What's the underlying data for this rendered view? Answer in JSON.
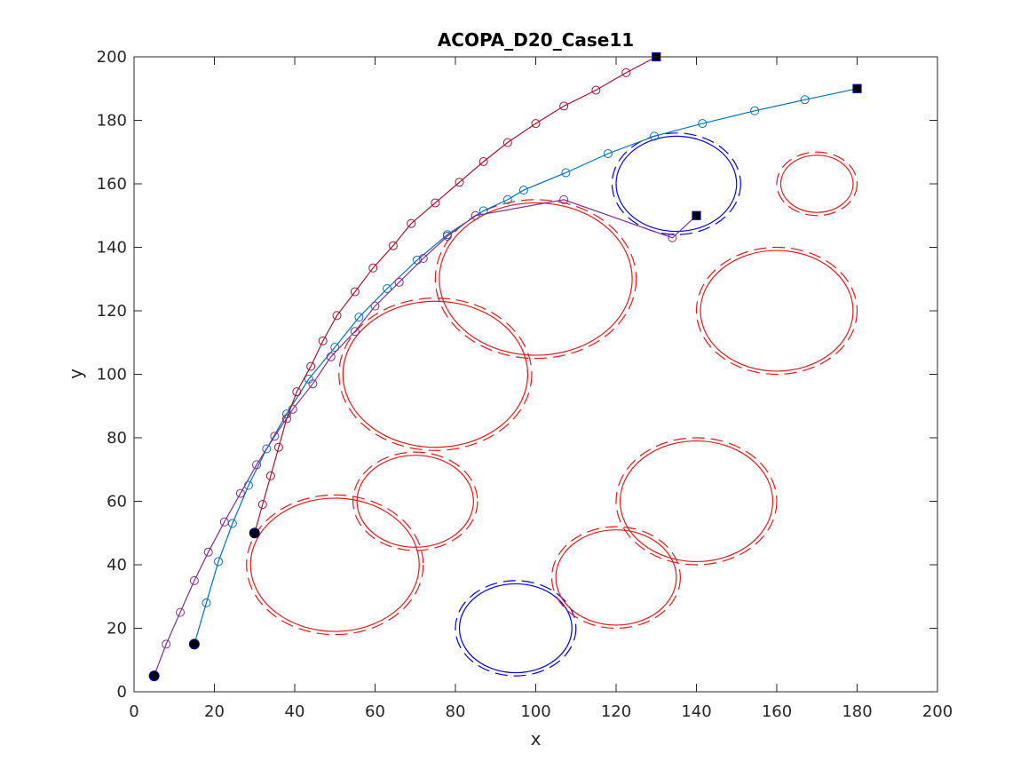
{
  "chart_data": {
    "type": "line",
    "title": "ACOPA_D20_Case11",
    "xlabel": "x",
    "ylabel": "y",
    "xlim": [
      0,
      200
    ],
    "ylim": [
      0,
      200
    ],
    "xticks": [
      0,
      20,
      40,
      60,
      80,
      100,
      120,
      140,
      160,
      180,
      200
    ],
    "yticks": [
      0,
      20,
      40,
      60,
      80,
      100,
      120,
      140,
      160,
      180,
      200
    ],
    "grid": false,
    "legend": "none",
    "obstacles": [
      {
        "cx": 50,
        "cy": 40,
        "r": 21,
        "color": "#e31a1c",
        "style": "solid+dashed"
      },
      {
        "cx": 70,
        "cy": 60,
        "r": 14.5,
        "color": "#e31a1c",
        "style": "solid+dashed"
      },
      {
        "cx": 75,
        "cy": 100,
        "r": 23,
        "color": "#e31a1c",
        "style": "solid+dashed"
      },
      {
        "cx": 100,
        "cy": 130,
        "r": 24,
        "color": "#e31a1c",
        "style": "solid+dashed"
      },
      {
        "cx": 95,
        "cy": 20,
        "r": 14,
        "color": "#0000ee",
        "style": "solid+dashed"
      },
      {
        "cx": 120,
        "cy": 36,
        "r": 15,
        "color": "#e31a1c",
        "style": "solid+dashed"
      },
      {
        "cx": 140,
        "cy": 60,
        "r": 19,
        "color": "#e31a1c",
        "style": "solid+dashed"
      },
      {
        "cx": 160,
        "cy": 120,
        "r": 19,
        "color": "#e31a1c",
        "style": "solid+dashed"
      },
      {
        "cx": 135,
        "cy": 160,
        "r": 15,
        "color": "#0000ee",
        "style": "solid+dashed"
      },
      {
        "cx": 170,
        "cy": 160,
        "r": 9,
        "color": "#e31a1c",
        "style": "solid+dashed"
      }
    ],
    "series": [
      {
        "color": "#0072bd",
        "start": [
          15,
          15
        ],
        "goal": [
          180,
          190
        ],
        "x": [
          15,
          18,
          21,
          24.5,
          28.5,
          33,
          38,
          43.5,
          50,
          56,
          63,
          70.5,
          78,
          87,
          93,
          97,
          107.5,
          118,
          129.5,
          141.5,
          154.5,
          167,
          180
        ],
        "y": [
          15,
          28,
          41,
          53,
          65,
          76.5,
          87.5,
          98.5,
          108.5,
          118,
          127,
          136,
          144,
          151.5,
          155,
          158,
          163.5,
          169.5,
          175,
          179,
          183,
          186.5,
          190
        ]
      },
      {
        "color": "#a2142f",
        "start": [
          30,
          50
        ],
        "goal": [
          130,
          200
        ],
        "x": [
          30,
          32,
          34,
          36,
          38,
          40.5,
          44,
          47,
          50.5,
          55,
          59.5,
          64.5,
          69,
          75,
          81,
          87,
          93,
          100,
          107,
          115,
          122.5,
          130
        ],
        "y": [
          50,
          59,
          68,
          77,
          86,
          94.5,
          102.5,
          110.5,
          118.5,
          126,
          133.5,
          140.5,
          147.5,
          154,
          160.5,
          167,
          173,
          179,
          184.5,
          189.5,
          195,
          200
        ]
      },
      {
        "color": "#7e2f8e",
        "start": [
          5,
          5
        ],
        "goal": [
          140,
          150
        ],
        "x": [
          5,
          8,
          11.5,
          15,
          18.5,
          22.5,
          26.5,
          30.5,
          35,
          39.5,
          44.5,
          49,
          55,
          60,
          66,
          72,
          78,
          85,
          107,
          134,
          140
        ],
        "y": [
          5,
          15,
          25,
          35,
          44,
          53.5,
          62.5,
          71.5,
          80.5,
          89,
          97,
          105.5,
          113.5,
          121.5,
          129,
          136.5,
          143.5,
          150,
          155,
          143,
          150
        ]
      }
    ]
  }
}
